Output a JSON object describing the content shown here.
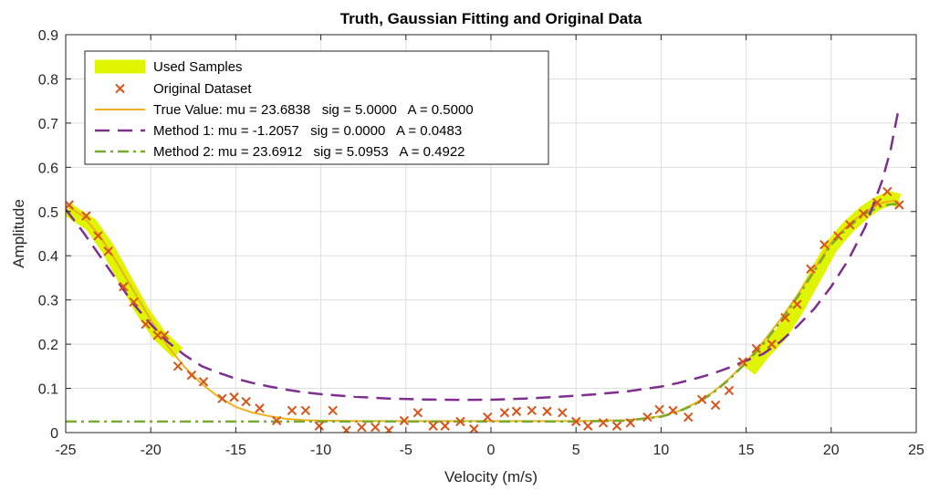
{
  "chart_data": {
    "type": "line",
    "title": "Truth, Gaussian Fitting and Original Data",
    "xlabel": "Velocity (m/s)",
    "ylabel": "Amplitude",
    "xlim": [
      -25,
      25
    ],
    "ylim": [
      0,
      0.9
    ],
    "xticks": [
      -25,
      -20,
      -15,
      -10,
      -5,
      0,
      5,
      10,
      15,
      20,
      25
    ],
    "yticks": [
      0,
      0.1,
      0.2,
      0.3,
      0.4,
      0.5,
      0.6,
      0.7,
      0.8,
      0.9
    ],
    "xtick_labels": [
      "-25",
      "-20",
      "-15",
      "-10",
      "-5",
      "0",
      "5",
      "10",
      "15",
      "20",
      "25"
    ],
    "ytick_labels": [
      "0",
      "0.1",
      "0.2",
      "0.3",
      "0.4",
      "0.5",
      "0.6",
      "0.7",
      "0.8",
      "0.9"
    ],
    "grid": true,
    "legend_position": "top-left",
    "colors": {
      "used_samples": "#dff500",
      "original": "#d95319",
      "true_value": "#edb120",
      "method1": "#7e2f8e",
      "method2": "#77ac30"
    },
    "legend": [
      {
        "key": "used",
        "label": "Used Samples"
      },
      {
        "key": "orig",
        "label": "Original Dataset"
      },
      {
        "key": "truth",
        "label": "True Value: mu = 23.6838   sig = 5.0000   A = 0.5000"
      },
      {
        "key": "m1",
        "label": "Method 1: mu = -1.2057   sig = 0.0000   A = 0.0483"
      },
      {
        "key": "m2",
        "label": "Method 2: mu = 23.6912   sig = 5.0953   A = 0.4922"
      }
    ],
    "series": [
      {
        "name": "Used Samples",
        "style": "thick-band",
        "segments": [
          {
            "x": [
              -24.9,
              -23.5,
              -22.5,
              -21.5,
              -20.5,
              -19.5,
              -18.4
            ],
            "y": [
              0.505,
              0.47,
              0.415,
              0.345,
              0.275,
              0.22,
              0.18
            ]
          },
          {
            "x": [
              15.2,
              16.0,
              17.0,
              18.0,
              19.0,
              20.0,
              21.0,
              22.0,
              22.8,
              23.5,
              24.0
            ],
            "y": [
              0.14,
              0.18,
              0.22,
              0.28,
              0.35,
              0.42,
              0.465,
              0.5,
              0.52,
              0.53,
              0.525
            ]
          }
        ]
      },
      {
        "name": "Original Dataset",
        "style": "markers",
        "x": [
          -24.8,
          -23.8,
          -23.1,
          -22.5,
          -21.6,
          -21.0,
          -20.3,
          -19.6,
          -19.2,
          -18.4,
          -17.6,
          -16.9,
          -15.8,
          -15.1,
          -14.4,
          -13.6,
          -12.6,
          -11.7,
          -10.9,
          -10.1,
          -9.3,
          -8.5,
          -7.6,
          -6.8,
          -6.0,
          -5.1,
          -4.3,
          -3.4,
          -2.7,
          -1.8,
          -1.0,
          -0.2,
          0.8,
          1.5,
          2.4,
          3.3,
          4.2,
          5.0,
          5.7,
          6.6,
          7.4,
          8.2,
          9.2,
          9.9,
          10.7,
          11.6,
          12.4,
          13.2,
          14.0,
          14.8,
          15.6,
          16.5,
          17.3,
          18.0,
          18.8,
          19.6,
          20.4,
          21.1,
          21.9,
          22.7,
          23.3,
          24.0
        ],
        "y": [
          0.515,
          0.49,
          0.445,
          0.41,
          0.33,
          0.295,
          0.245,
          0.22,
          0.22,
          0.15,
          0.13,
          0.115,
          0.077,
          0.08,
          0.07,
          0.055,
          0.027,
          0.05,
          0.05,
          0.015,
          0.05,
          0.005,
          0.012,
          0.012,
          0.005,
          0.027,
          0.045,
          0.015,
          0.015,
          0.025,
          0.008,
          0.035,
          0.045,
          0.048,
          0.05,
          0.048,
          0.045,
          0.025,
          0.015,
          0.022,
          0.015,
          0.022,
          0.035,
          0.052,
          0.05,
          0.035,
          0.075,
          0.062,
          0.095,
          0.16,
          0.19,
          0.2,
          0.26,
          0.29,
          0.37,
          0.425,
          0.445,
          0.47,
          0.495,
          0.52,
          0.545,
          0.515
        ]
      },
      {
        "name": "True Value",
        "style": "solid",
        "x": [
          -25,
          -24,
          -23,
          -22,
          -21,
          -20,
          -19,
          -18,
          -17,
          -16,
          -15,
          -14,
          -13,
          -12,
          -11,
          -10,
          -8,
          -5,
          0,
          5,
          8,
          10,
          11,
          12,
          13,
          14,
          15,
          16,
          17,
          18,
          19,
          20,
          21,
          22,
          23,
          23.68,
          24
        ],
        "y": [
          0.515,
          0.49,
          0.445,
          0.385,
          0.32,
          0.255,
          0.195,
          0.148,
          0.11,
          0.08,
          0.058,
          0.045,
          0.037,
          0.031,
          0.028,
          0.027,
          0.026,
          0.026,
          0.026,
          0.026,
          0.028,
          0.037,
          0.048,
          0.066,
          0.09,
          0.122,
          0.16,
          0.205,
          0.255,
          0.31,
          0.37,
          0.43,
          0.47,
          0.5,
          0.52,
          0.525,
          0.52
        ]
      },
      {
        "name": "Method 1",
        "style": "dashed",
        "x": [
          -25,
          -24,
          -23,
          -22,
          -21,
          -20,
          -19,
          -18,
          -17,
          -16,
          -15,
          -14,
          -13,
          -12,
          -11,
          -10,
          -8,
          -6,
          -4,
          -2,
          -1.2,
          0,
          2,
          4,
          6,
          8,
          10,
          11,
          12,
          13,
          14,
          15,
          16,
          17,
          18,
          19,
          20,
          21,
          22,
          23,
          23.5,
          24
        ],
        "y": [
          0.505,
          0.455,
          0.4,
          0.345,
          0.29,
          0.245,
          0.205,
          0.175,
          0.15,
          0.135,
          0.122,
          0.112,
          0.104,
          0.097,
          0.091,
          0.087,
          0.081,
          0.077,
          0.075,
          0.0742,
          0.0741,
          0.0743,
          0.077,
          0.081,
          0.086,
          0.093,
          0.104,
          0.112,
          0.122,
          0.133,
          0.147,
          0.163,
          0.178,
          0.205,
          0.24,
          0.28,
          0.33,
          0.39,
          0.465,
          0.57,
          0.64,
          0.74
        ]
      },
      {
        "name": "Method 2",
        "style": "dashdot",
        "x": [
          -25,
          -20,
          -15,
          -10,
          -5,
          0,
          5,
          8,
          10,
          11,
          12,
          13,
          14,
          15,
          16,
          17,
          18,
          19,
          20,
          21,
          22,
          23,
          23.69,
          24
        ],
        "y": [
          0.025,
          0.025,
          0.025,
          0.025,
          0.025,
          0.025,
          0.025,
          0.027,
          0.036,
          0.047,
          0.064,
          0.088,
          0.12,
          0.158,
          0.2,
          0.25,
          0.305,
          0.365,
          0.425,
          0.465,
          0.495,
          0.513,
          0.517,
          0.515
        ]
      }
    ]
  }
}
